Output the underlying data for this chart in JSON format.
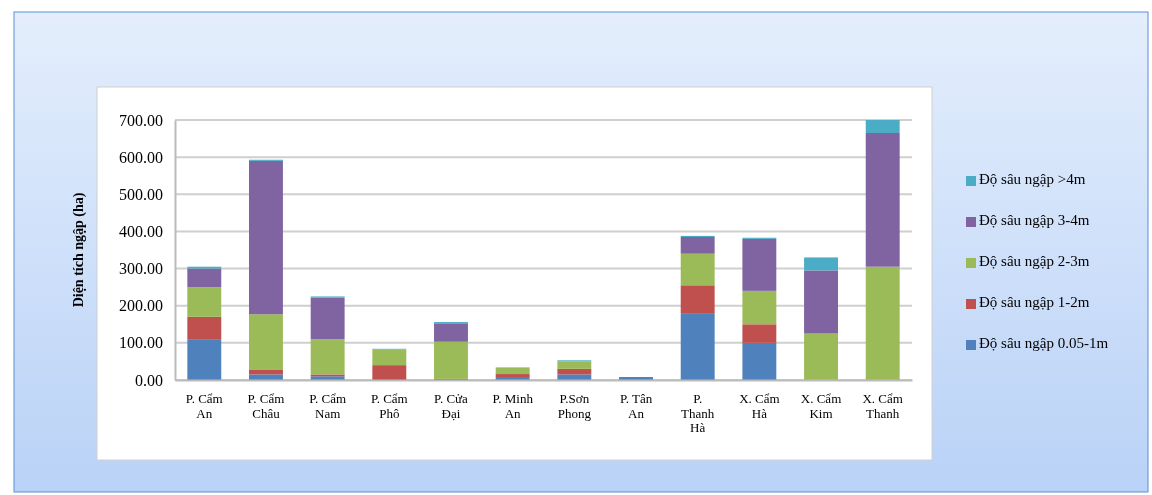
{
  "chart_data": {
    "type": "bar",
    "stacked": true,
    "ylabel": "Diện tích ngập (ha)",
    "categories": [
      "P. Cẩm An",
      "P. Cẩm Châu",
      "P. Cẩm Nam",
      "P. Cẩm Phô",
      "P. Cửa Đại",
      "P. Minh An",
      "P.Sơn Phong",
      "P. Tân An",
      "P. Thanh Hà",
      "X. Cẩm Hà",
      "X. Cẩm Kim",
      "X. Cẩm Thanh"
    ],
    "series": [
      {
        "name": "Độ sâu ngập 0.05-1m",
        "color": "#4f81bd",
        "values": [
          110,
          15,
          10,
          0,
          null,
          8,
          15,
          8,
          180,
          100,
          0,
          0
        ]
      },
      {
        "name": "Độ sâu ngập 1-2m",
        "color": "#c0504d",
        "values": [
          60,
          12,
          5,
          40,
          3,
          8,
          15,
          0,
          75,
          50,
          0,
          0
        ]
      },
      {
        "name": "Độ sâu ngập 2-3m",
        "color": "#9bbb59",
        "values": [
          80,
          150,
          95,
          42,
          100,
          18,
          20,
          0,
          85,
          90,
          125,
          305
        ]
      },
      {
        "name": "Độ sâu ngập 3-4m",
        "color": "#8064a2",
        "values": [
          50,
          413,
          112,
          0,
          48,
          0,
          0,
          0,
          45,
          140,
          170,
          360
        ]
      },
      {
        "name": "Độ sâu ngập >4m",
        "color": "#4bacc6",
        "values": [
          5,
          3,
          3,
          2,
          5,
          null,
          3,
          null,
          3,
          3,
          35,
          35
        ]
      }
    ],
    "ylim": [
      0,
      700
    ],
    "yticks": [
      {
        "value": 0,
        "label": "0.00"
      },
      {
        "value": 100,
        "label": "100.00"
      },
      {
        "value": 200,
        "label": "200.00"
      },
      {
        "value": 300,
        "label": "300.00"
      },
      {
        "value": 400,
        "label": "400.00"
      },
      {
        "value": 500,
        "label": "500.00"
      },
      {
        "value": 600,
        "label": "600.00"
      },
      {
        "value": 700,
        "label": "700.00"
      }
    ],
    "grid": "y",
    "legend": "right"
  }
}
